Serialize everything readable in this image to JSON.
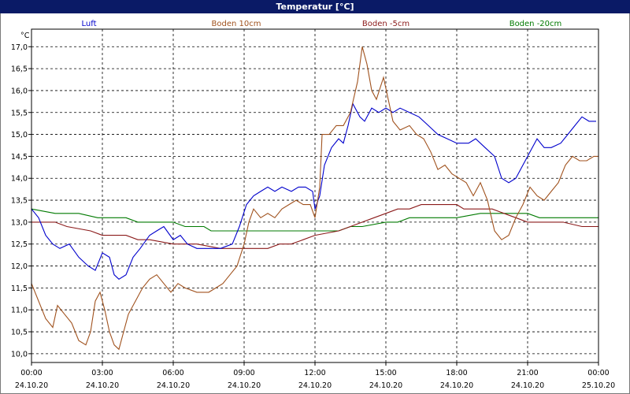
{
  "chart_data": {
    "type": "line",
    "title": "Temperatur [°C]",
    "ylabel_unit": "°C",
    "ylim": [
      9.8,
      17.4
    ],
    "yticks": [
      10.0,
      10.5,
      11.0,
      11.5,
      12.0,
      12.5,
      13.0,
      13.5,
      14.0,
      14.5,
      15.0,
      15.5,
      16.0,
      16.5,
      17.0
    ],
    "ytick_labels": [
      "10,0",
      "10,5",
      "11,0",
      "11,5",
      "12,0",
      "12,5",
      "13,0",
      "13,5",
      "14,0",
      "14,5",
      "15,0",
      "15,5",
      "16,0",
      "16,5",
      "17,0"
    ],
    "xlim_hours": [
      0,
      24
    ],
    "xticks": [
      {
        "h": 0,
        "time": "00:00",
        "date": "24.10.20"
      },
      {
        "h": 3,
        "time": "03:00",
        "date": "24.10.20"
      },
      {
        "h": 6,
        "time": "06:00",
        "date": "24.10.20"
      },
      {
        "h": 9,
        "time": "09:00",
        "date": "24.10.20"
      },
      {
        "h": 12,
        "time": "12:00",
        "date": "24.10.20"
      },
      {
        "h": 15,
        "time": "15:00",
        "date": "24.10.20"
      },
      {
        "h": 18,
        "time": "18:00",
        "date": "24.10.20"
      },
      {
        "h": 21,
        "time": "21:00",
        "date": "24.10.20"
      },
      {
        "h": 24,
        "time": "00:00",
        "date": "25.10.20"
      }
    ],
    "grid": true,
    "series": [
      {
        "name": "Luft",
        "color": "#0000cc",
        "points": [
          [
            0,
            13.3
          ],
          [
            0.3,
            13.1
          ],
          [
            0.6,
            12.7
          ],
          [
            0.9,
            12.5
          ],
          [
            1.2,
            12.4
          ],
          [
            1.6,
            12.5
          ],
          [
            2.0,
            12.2
          ],
          [
            2.4,
            12.0
          ],
          [
            2.7,
            11.9
          ],
          [
            3.0,
            12.3
          ],
          [
            3.3,
            12.2
          ],
          [
            3.5,
            11.8
          ],
          [
            3.7,
            11.7
          ],
          [
            4.0,
            11.8
          ],
          [
            4.3,
            12.2
          ],
          [
            4.6,
            12.4
          ],
          [
            5.0,
            12.7
          ],
          [
            5.3,
            12.8
          ],
          [
            5.6,
            12.9
          ],
          [
            6.0,
            12.6
          ],
          [
            6.3,
            12.7
          ],
          [
            6.6,
            12.5
          ],
          [
            7.0,
            12.4
          ],
          [
            7.5,
            12.4
          ],
          [
            8.0,
            12.4
          ],
          [
            8.5,
            12.5
          ],
          [
            8.8,
            12.9
          ],
          [
            9.1,
            13.4
          ],
          [
            9.4,
            13.6
          ],
          [
            9.7,
            13.7
          ],
          [
            10.0,
            13.8
          ],
          [
            10.3,
            13.7
          ],
          [
            10.6,
            13.8
          ],
          [
            11.0,
            13.7
          ],
          [
            11.3,
            13.8
          ],
          [
            11.6,
            13.8
          ],
          [
            11.9,
            13.7
          ],
          [
            12.0,
            13.3
          ],
          [
            12.2,
            13.6
          ],
          [
            12.4,
            14.3
          ],
          [
            12.7,
            14.7
          ],
          [
            13.0,
            14.9
          ],
          [
            13.2,
            14.8
          ],
          [
            13.4,
            15.2
          ],
          [
            13.6,
            15.7
          ],
          [
            13.9,
            15.4
          ],
          [
            14.1,
            15.3
          ],
          [
            14.4,
            15.6
          ],
          [
            14.7,
            15.5
          ],
          [
            15.0,
            15.6
          ],
          [
            15.3,
            15.5
          ],
          [
            15.6,
            15.6
          ],
          [
            16.0,
            15.5
          ],
          [
            16.4,
            15.4
          ],
          [
            16.8,
            15.2
          ],
          [
            17.2,
            15.0
          ],
          [
            17.6,
            14.9
          ],
          [
            18.0,
            14.8
          ],
          [
            18.5,
            14.8
          ],
          [
            18.8,
            14.9
          ],
          [
            19.2,
            14.7
          ],
          [
            19.6,
            14.5
          ],
          [
            19.9,
            14.0
          ],
          [
            20.2,
            13.9
          ],
          [
            20.5,
            14.0
          ],
          [
            20.8,
            14.3
          ],
          [
            21.1,
            14.6
          ],
          [
            21.4,
            14.9
          ],
          [
            21.7,
            14.7
          ],
          [
            22.0,
            14.7
          ],
          [
            22.4,
            14.8
          ],
          [
            22.7,
            15.0
          ],
          [
            23.0,
            15.2
          ],
          [
            23.3,
            15.4
          ],
          [
            23.6,
            15.3
          ],
          [
            23.9,
            15.3
          ]
        ]
      },
      {
        "name": "Boden 10cm",
        "color": "#a0521e",
        "points": [
          [
            0,
            11.6
          ],
          [
            0.3,
            11.2
          ],
          [
            0.6,
            10.8
          ],
          [
            0.9,
            10.6
          ],
          [
            1.1,
            11.1
          ],
          [
            1.4,
            10.9
          ],
          [
            1.7,
            10.7
          ],
          [
            2.0,
            10.3
          ],
          [
            2.3,
            10.2
          ],
          [
            2.5,
            10.5
          ],
          [
            2.7,
            11.2
          ],
          [
            2.9,
            11.4
          ],
          [
            3.1,
            11.0
          ],
          [
            3.3,
            10.5
          ],
          [
            3.5,
            10.2
          ],
          [
            3.7,
            10.1
          ],
          [
            3.9,
            10.5
          ],
          [
            4.1,
            10.9
          ],
          [
            4.4,
            11.2
          ],
          [
            4.7,
            11.5
          ],
          [
            5.0,
            11.7
          ],
          [
            5.3,
            11.8
          ],
          [
            5.6,
            11.6
          ],
          [
            5.9,
            11.4
          ],
          [
            6.2,
            11.6
          ],
          [
            6.5,
            11.5
          ],
          [
            7.0,
            11.4
          ],
          [
            7.5,
            11.4
          ],
          [
            7.8,
            11.5
          ],
          [
            8.1,
            11.6
          ],
          [
            8.4,
            11.8
          ],
          [
            8.7,
            12.0
          ],
          [
            9.0,
            12.5
          ],
          [
            9.2,
            13.0
          ],
          [
            9.4,
            13.3
          ],
          [
            9.7,
            13.1
          ],
          [
            10.0,
            13.2
          ],
          [
            10.3,
            13.1
          ],
          [
            10.6,
            13.3
          ],
          [
            10.9,
            13.4
          ],
          [
            11.2,
            13.5
          ],
          [
            11.5,
            13.4
          ],
          [
            11.8,
            13.4
          ],
          [
            12.0,
            13.1
          ],
          [
            12.2,
            13.8
          ],
          [
            12.3,
            15.0
          ],
          [
            12.6,
            15.0
          ],
          [
            12.9,
            15.2
          ],
          [
            13.2,
            15.2
          ],
          [
            13.5,
            15.5
          ],
          [
            13.8,
            16.2
          ],
          [
            14.0,
            17.0
          ],
          [
            14.2,
            16.6
          ],
          [
            14.4,
            16.0
          ],
          [
            14.6,
            15.8
          ],
          [
            14.9,
            16.3
          ],
          [
            15.1,
            15.8
          ],
          [
            15.3,
            15.3
          ],
          [
            15.6,
            15.1
          ],
          [
            16.0,
            15.2
          ],
          [
            16.3,
            15.0
          ],
          [
            16.6,
            14.9
          ],
          [
            16.9,
            14.6
          ],
          [
            17.2,
            14.2
          ],
          [
            17.5,
            14.3
          ],
          [
            17.8,
            14.1
          ],
          [
            18.1,
            14.0
          ],
          [
            18.4,
            13.9
          ],
          [
            18.7,
            13.6
          ],
          [
            19.0,
            13.9
          ],
          [
            19.3,
            13.5
          ],
          [
            19.6,
            12.8
          ],
          [
            19.9,
            12.6
          ],
          [
            20.2,
            12.7
          ],
          [
            20.5,
            13.1
          ],
          [
            20.8,
            13.4
          ],
          [
            21.1,
            13.8
          ],
          [
            21.4,
            13.6
          ],
          [
            21.7,
            13.5
          ],
          [
            22.0,
            13.7
          ],
          [
            22.3,
            13.9
          ],
          [
            22.6,
            14.3
          ],
          [
            22.9,
            14.5
          ],
          [
            23.2,
            14.4
          ],
          [
            23.5,
            14.4
          ],
          [
            23.8,
            14.5
          ],
          [
            24.0,
            14.5
          ]
        ]
      },
      {
        "name": "Boden -5cm",
        "color": "#8b1a1a",
        "points": [
          [
            0,
            13.0
          ],
          [
            1.0,
            13.0
          ],
          [
            1.5,
            12.9
          ],
          [
            2.5,
            12.8
          ],
          [
            3.0,
            12.7
          ],
          [
            4.0,
            12.7
          ],
          [
            4.5,
            12.6
          ],
          [
            5.0,
            12.6
          ],
          [
            6.0,
            12.5
          ],
          [
            7.0,
            12.5
          ],
          [
            8.0,
            12.4
          ],
          [
            9.0,
            12.4
          ],
          [
            10.0,
            12.4
          ],
          [
            10.5,
            12.5
          ],
          [
            11.0,
            12.5
          ],
          [
            11.5,
            12.6
          ],
          [
            12.0,
            12.7
          ],
          [
            13.0,
            12.8
          ],
          [
            13.5,
            12.9
          ],
          [
            14.0,
            13.0
          ],
          [
            14.5,
            13.1
          ],
          [
            15.0,
            13.2
          ],
          [
            15.5,
            13.3
          ],
          [
            16.0,
            13.3
          ],
          [
            16.5,
            13.4
          ],
          [
            18.0,
            13.4
          ],
          [
            18.3,
            13.3
          ],
          [
            19.5,
            13.3
          ],
          [
            20.0,
            13.2
          ],
          [
            20.5,
            13.1
          ],
          [
            21.0,
            13.0
          ],
          [
            22.5,
            13.0
          ],
          [
            23.3,
            12.9
          ],
          [
            24.0,
            12.9
          ]
        ]
      },
      {
        "name": "Boden -20cm",
        "color": "#007a00",
        "points": [
          [
            0,
            13.3
          ],
          [
            1.0,
            13.2
          ],
          [
            2.0,
            13.2
          ],
          [
            2.8,
            13.1
          ],
          [
            4.0,
            13.1
          ],
          [
            4.5,
            13.0
          ],
          [
            6.0,
            13.0
          ],
          [
            6.5,
            12.9
          ],
          [
            7.3,
            12.9
          ],
          [
            7.6,
            12.8
          ],
          [
            9.0,
            12.8
          ],
          [
            10.0,
            12.8
          ],
          [
            12.0,
            12.8
          ],
          [
            13.0,
            12.8
          ],
          [
            13.5,
            12.9
          ],
          [
            14.0,
            12.9
          ],
          [
            15.0,
            13.0
          ],
          [
            15.5,
            13.0
          ],
          [
            16.0,
            13.1
          ],
          [
            18.0,
            13.1
          ],
          [
            19.0,
            13.2
          ],
          [
            21.0,
            13.2
          ],
          [
            21.5,
            13.1
          ],
          [
            24.0,
            13.1
          ]
        ]
      }
    ]
  }
}
